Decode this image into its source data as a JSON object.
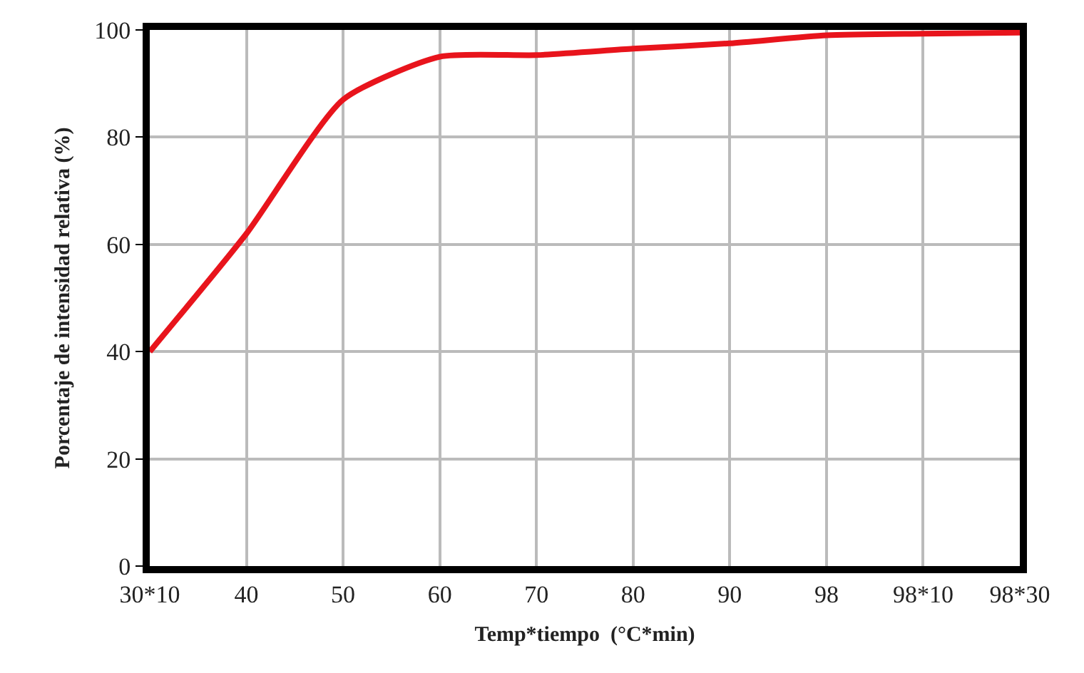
{
  "chart_data": {
    "type": "line",
    "xlabel": "Temp*tiempo  (°C*min)",
    "ylabel": "Porcentaje de intensidad relativa (%)",
    "categories": [
      "30*10",
      "40",
      "50",
      "60",
      "70",
      "80",
      "90",
      "98",
      "98*10",
      "98*30"
    ],
    "series": [
      {
        "color": "#e8141c",
        "values": [
          40,
          62,
          87,
          95,
          95.3,
          96.5,
          97.5,
          99,
          99.3,
          99.5
        ]
      }
    ],
    "ylim": [
      0,
      100
    ],
    "yticks": [
      0,
      20,
      40,
      60,
      80,
      100
    ],
    "grid": true,
    "legend": false,
    "marker": "none",
    "line_style": "solid"
  }
}
